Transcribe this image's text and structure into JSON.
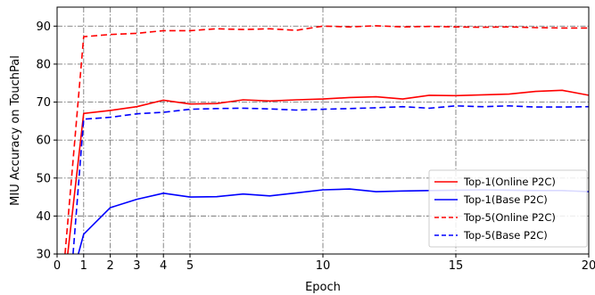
{
  "chart_data": {
    "type": "line",
    "xlabel": "Epoch",
    "ylabel": "MIU Accuracy on TouchPal",
    "xlim": [
      0,
      20
    ],
    "ylim": [
      30,
      95
    ],
    "xticks": [
      0,
      1,
      2,
      3,
      4,
      5,
      10,
      15,
      20
    ],
    "yticks": [
      30,
      40,
      50,
      60,
      70,
      80,
      90
    ],
    "grid": true,
    "legend_position": "bottom-right",
    "series": [
      {
        "name": "Top-1(Online P2C)",
        "color": "#ff0000",
        "dash": "solid",
        "x": [
          0.4,
          1,
          2,
          3,
          4,
          5,
          6,
          7,
          8,
          9,
          10,
          11,
          12,
          13,
          14,
          15,
          16,
          17,
          18,
          19,
          20
        ],
        "y": [
          30,
          67,
          67.8,
          68.8,
          70.5,
          69.5,
          69.6,
          70.6,
          70.3,
          70.6,
          70.8,
          71.2,
          71.4,
          70.8,
          71.8,
          71.7,
          71.9,
          72.1,
          72.8,
          73.1,
          71.8
        ]
      },
      {
        "name": "Top-1(Base P2C)",
        "color": "#0000ff",
        "dash": "solid",
        "x": [
          0.8,
          1,
          2,
          3,
          4,
          5,
          6,
          7,
          8,
          9,
          10,
          11,
          12,
          13,
          14,
          15,
          16,
          17,
          18,
          19,
          20
        ],
        "y": [
          30,
          35.2,
          42.2,
          44.4,
          46,
          45,
          45.1,
          45.8,
          45.3,
          46.1,
          46.9,
          47.1,
          46.4,
          46.6,
          46.7,
          46.8,
          46.9,
          46.8,
          46.7,
          46.7,
          46.4
        ]
      },
      {
        "name": "Top-5(Online P2C)",
        "color": "#ff0000",
        "dash": "dashed",
        "x": [
          0.3,
          1,
          2,
          3,
          4,
          5,
          6,
          7,
          8,
          9,
          10,
          11,
          12,
          13,
          14,
          15,
          16,
          17,
          18,
          19,
          20
        ],
        "y": [
          30,
          87.2,
          87.8,
          88.1,
          88.8,
          88.8,
          89.3,
          89.1,
          89.3,
          88.9,
          90,
          89.8,
          90.1,
          89.8,
          89.9,
          89.8,
          89.7,
          89.8,
          89.6,
          89.5,
          89.5
        ]
      },
      {
        "name": "Top-5(Base P2C)",
        "color": "#0000ff",
        "dash": "dashed",
        "x": [
          0.6,
          1,
          2,
          3,
          4,
          5,
          6,
          7,
          8,
          9,
          10,
          11,
          12,
          13,
          14,
          15,
          16,
          17,
          18,
          19,
          20
        ],
        "y": [
          30,
          65.5,
          66,
          66.9,
          67.3,
          68.1,
          68.3,
          68.4,
          68.2,
          67.9,
          68.1,
          68.3,
          68.5,
          68.8,
          68.4,
          69,
          68.8,
          69,
          68.7,
          68.7,
          68.8
        ]
      }
    ]
  }
}
